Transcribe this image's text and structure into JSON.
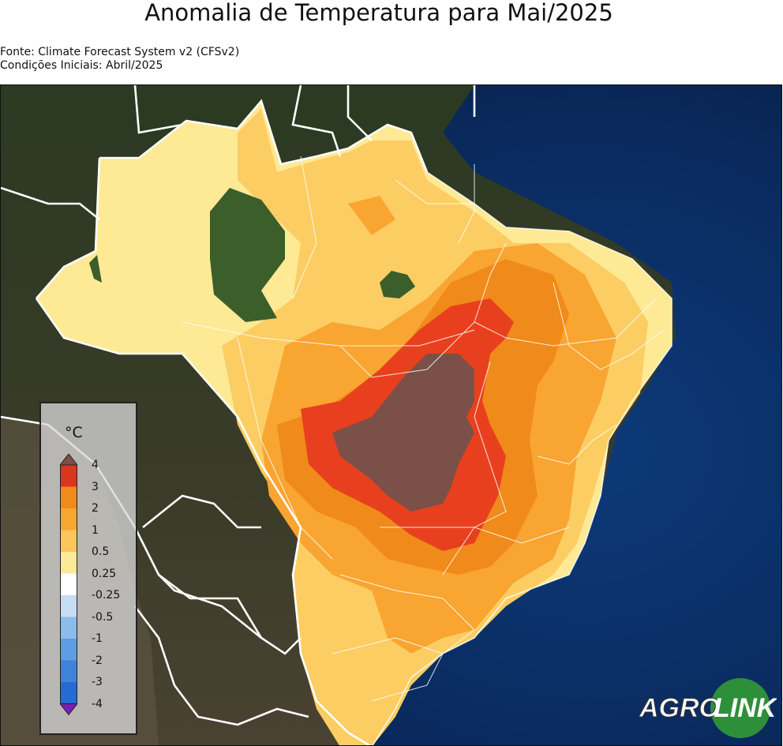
{
  "title": "Anomalia de Temperatura para Mai/2025",
  "source_lines": [
    "Fonte: Climate Forecast System v2 (CFSv2)",
    "Condições Iniciais: Abril/2025"
  ],
  "legend": {
    "unit": "°C",
    "levels": [
      {
        "label": "4",
        "color": "#d9361e"
      },
      {
        "label": "3",
        "color": "#f08a1a"
      },
      {
        "label": "2",
        "color": "#f9a531"
      },
      {
        "label": "1",
        "color": "#fcc65a"
      },
      {
        "label": "0.5",
        "color": "#fee995"
      },
      {
        "label": "0.25",
        "color": "#ffffff"
      },
      {
        "label": "-0.25",
        "color": "#c6dcf3"
      },
      {
        "label": "-0.5",
        "color": "#8dbbea"
      },
      {
        "label": "-1",
        "color": "#5c9de3"
      },
      {
        "label": "-2",
        "color": "#3d83dc"
      },
      {
        "label": "-3",
        "color": "#246bd4"
      },
      {
        "label": "-4",
        "color": "#1d4fcc"
      }
    ],
    "over_color": "#7a5048",
    "under_color": "#7a1fb0"
  },
  "logo": {
    "part1": "AGRO",
    "part2": "LINK",
    "circle_color": "#2e8f3a"
  }
}
